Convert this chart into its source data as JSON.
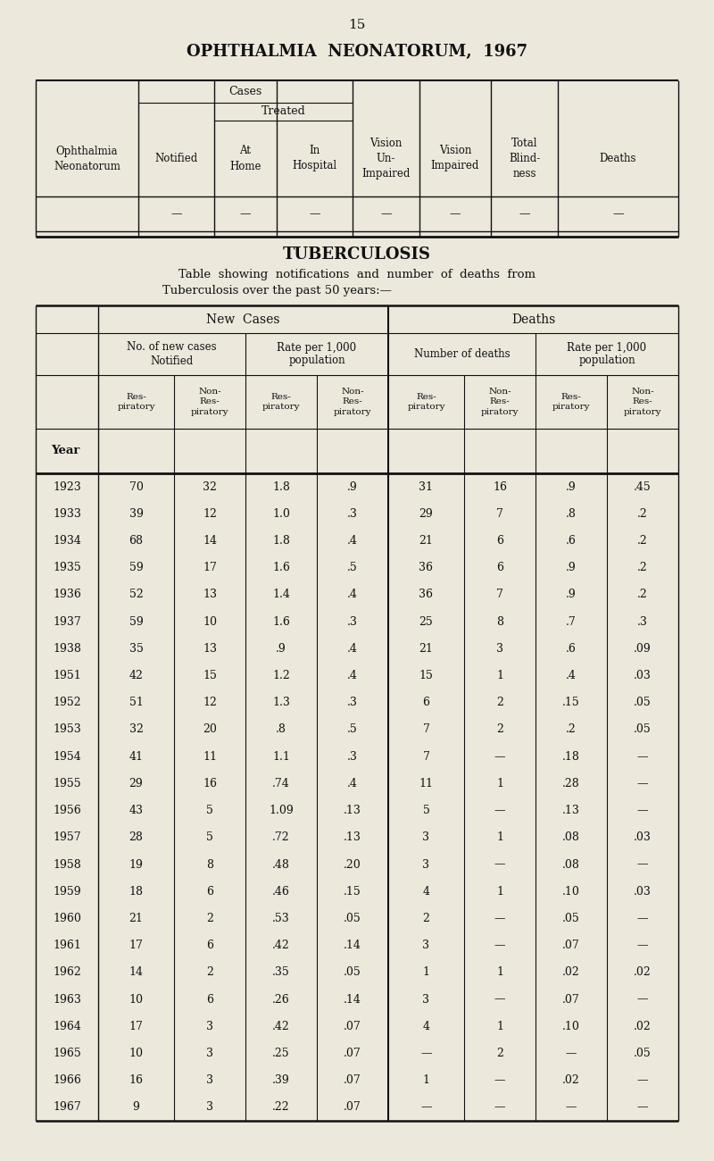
{
  "page_number": "15",
  "title1": "OPHTHALMIA  NEONATORUM,  1967",
  "title2": "TUBERCULOSIS",
  "subtitle1": "Table  showing  notifications  and  number  of  deaths  from",
  "subtitle2": "Tuberculosis over the past 50 years:—",
  "bg_color": "#ece8dc",
  "text_color": "#111111",
  "tb_data": [
    [
      "1923",
      "70",
      "32",
      "1.8",
      ".9",
      "31",
      "16",
      ".9",
      ".45"
    ],
    [
      "1933",
      "39",
      "12",
      "1.0",
      ".3",
      "29",
      "7",
      ".8",
      ".2"
    ],
    [
      "1934",
      "68",
      "14",
      "1.8",
      ".4",
      "21",
      "6",
      ".6",
      ".2"
    ],
    [
      "1935",
      "59",
      "17",
      "1.6",
      ".5",
      "36",
      "6",
      ".9",
      ".2"
    ],
    [
      "1936",
      "52",
      "13",
      "1.4",
      ".4",
      "36",
      "7",
      ".9",
      ".2"
    ],
    [
      "1937",
      "59",
      "10",
      "1.6",
      ".3",
      "25",
      "8",
      ".7",
      ".3"
    ],
    [
      "1938",
      "35",
      "13",
      ".9",
      ".4",
      "21",
      "3",
      ".6",
      ".09"
    ],
    [
      "1951",
      "42",
      "15",
      "1.2",
      ".4",
      "15",
      "1",
      ".4",
      ".03"
    ],
    [
      "1952",
      "51",
      "12",
      "1.3",
      ".3",
      "6",
      "2",
      ".15",
      ".05"
    ],
    [
      "1953",
      "32",
      "20",
      ".8",
      ".5",
      "7",
      "2",
      ".2",
      ".05"
    ],
    [
      "1954",
      "41",
      "11",
      "1.1",
      ".3",
      "7",
      "—",
      ".18",
      "—"
    ],
    [
      "1955",
      "29",
      "16",
      ".74",
      ".4",
      "11",
      "1",
      ".28",
      "—"
    ],
    [
      "1956",
      "43",
      "5",
      "1.09",
      ".13",
      "5",
      "—",
      ".13",
      "—"
    ],
    [
      "1957",
      "28",
      "5",
      ".72",
      ".13",
      "3",
      "1",
      ".08",
      ".03"
    ],
    [
      "1958",
      "19",
      "8",
      ".48",
      ".20",
      "3",
      "—",
      ".08",
      "—"
    ],
    [
      "1959",
      "18",
      "6",
      ".46",
      ".15",
      "4",
      "1",
      ".10",
      ".03"
    ],
    [
      "1960",
      "21",
      "2",
      ".53",
      ".05",
      "2",
      "—",
      ".05",
      "—"
    ],
    [
      "1961",
      "17",
      "6",
      ".42",
      ".14",
      "3",
      "—",
      ".07",
      "—"
    ],
    [
      "1962",
      "14",
      "2",
      ".35",
      ".05",
      "1",
      "1",
      ".02",
      ".02"
    ],
    [
      "1963",
      "10",
      "6",
      ".26",
      ".14",
      "3",
      "—",
      ".07",
      "—"
    ],
    [
      "1964",
      "17",
      "3",
      ".42",
      ".07",
      "4",
      "1",
      ".10",
      ".02"
    ],
    [
      "1965",
      "10",
      "3",
      ".25",
      ".07",
      "—",
      "2",
      "—",
      ".05"
    ],
    [
      "1966",
      "16",
      "3",
      ".39",
      ".07",
      "1",
      "—",
      ".02",
      "—"
    ],
    [
      "1967",
      "9",
      "3",
      ".22",
      ".07",
      "—",
      "—",
      "—",
      "—"
    ]
  ]
}
